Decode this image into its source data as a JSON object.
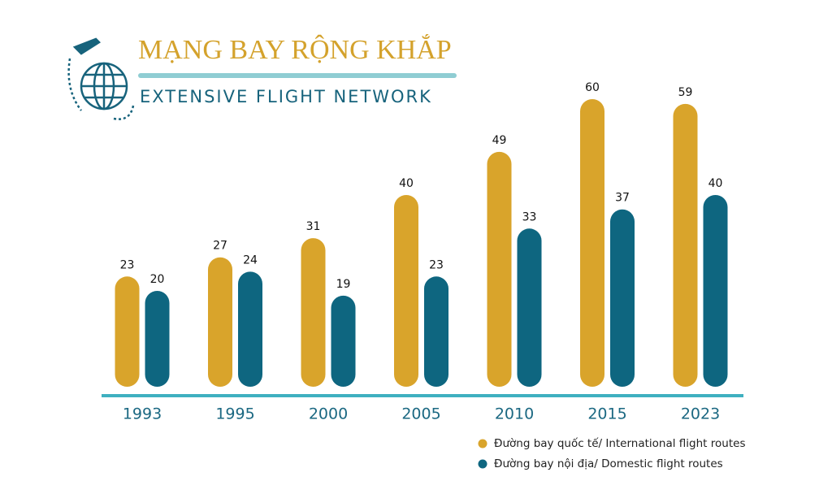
{
  "chart_data": {
    "type": "bar",
    "title": "MẠNG BAY RỘNG KHẮP",
    "subtitle": "EXTENSIVE FLIGHT NETWORK",
    "categories": [
      "1993",
      "1995",
      "2000",
      "2005",
      "2010",
      "2015",
      "2023"
    ],
    "series": [
      {
        "name": "Đường bay quốc tế/ International flight routes",
        "color": "#d9a42b",
        "values": [
          23,
          27,
          31,
          40,
          49,
          60,
          59
        ]
      },
      {
        "name": "Đường bay nội địa/ Domestic flight routes",
        "color": "#0e6680",
        "values": [
          20,
          24,
          19,
          23,
          33,
          37,
          40
        ]
      }
    ],
    "legend": "bottom-right"
  }
}
